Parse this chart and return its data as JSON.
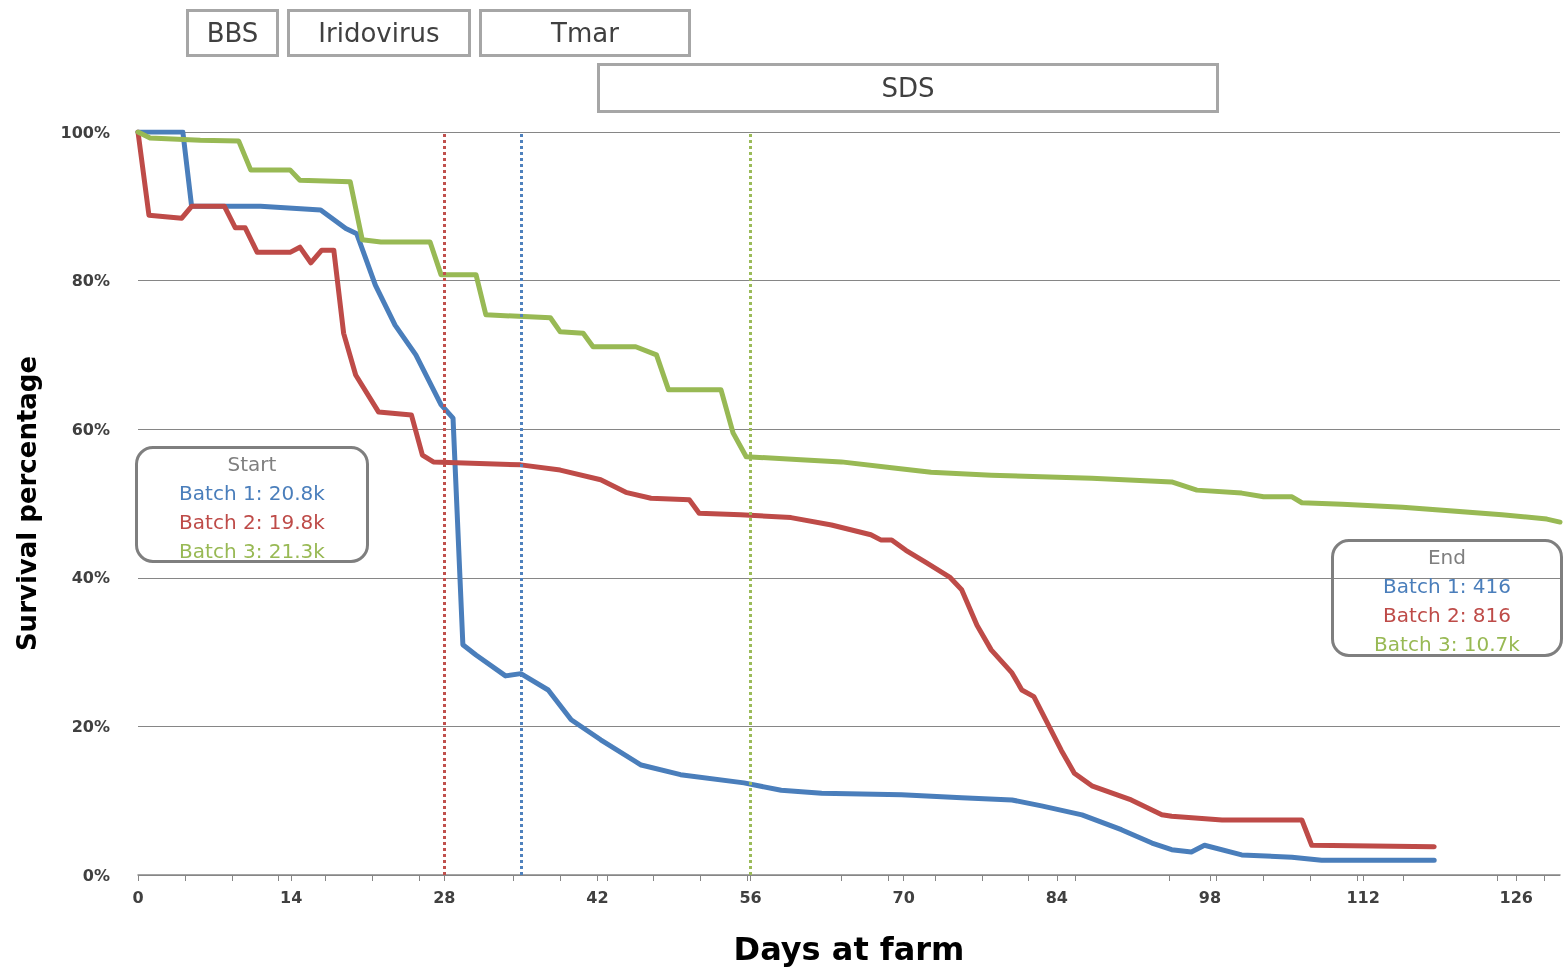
{
  "chart_data": {
    "type": "line",
    "xlabel": "Days at farm",
    "ylabel": "Survival percentage",
    "xlim": [
      0,
      130
    ],
    "xticks": [
      0,
      14,
      28,
      42,
      56,
      70,
      84,
      98,
      112,
      126
    ],
    "ylim": [
      0,
      100
    ],
    "yticks": [
      {
        "value": 0,
        "label": "0%"
      },
      {
        "value": 20,
        "label": "20%"
      },
      {
        "value": 40,
        "label": "40%"
      },
      {
        "value": 60,
        "label": "60%"
      },
      {
        "value": 80,
        "label": "80%"
      },
      {
        "value": 100,
        "label": "100%"
      }
    ],
    "grid": "y",
    "marker": "none",
    "line_style": "solid",
    "series": [
      {
        "color": "#4a7ebb",
        "x": [
          0,
          4.1,
          4.9,
          11.2,
          16.7,
          19,
          20,
          21.7,
          23.5,
          25.4,
          27.7,
          28.8,
          29.7,
          30.9,
          33.6,
          35,
          37.5,
          39.6,
          42.3,
          46,
          49.6,
          55.4,
          58.8,
          62.5,
          69.8,
          75.3,
          79.9,
          82.6,
          86.3,
          89.9,
          92.7,
          94.5,
          96.3,
          97.5,
          100.9,
          105.5,
          108.2,
          118.5
        ],
        "values": [
          100,
          100,
          90,
          90,
          89.5,
          87,
          86.3,
          79.4,
          74,
          70,
          63.3,
          61.5,
          31,
          29.6,
          26.8,
          27.1,
          24.9,
          20.9,
          18.2,
          14.8,
          13.5,
          12.4,
          11.4,
          11,
          10.8,
          10.4,
          10.1,
          9.3,
          8.1,
          6.1,
          4.3,
          3.4,
          3.1,
          4,
          2.7,
          2.4,
          2,
          2
        ]
      },
      {
        "color": "#be4b48",
        "x": [
          0,
          1,
          4,
          4.9,
          7.9,
          8.9,
          9.8,
          10.9,
          13.9,
          14.8,
          15.8,
          16.8,
          17.9,
          18.8,
          19.9,
          22,
          25,
          26,
          27,
          35,
          38.6,
          42.3,
          44.6,
          46.9,
          50.4,
          51.3,
          55.1,
          59.7,
          63.4,
          67,
          67.9,
          68.9,
          70.2,
          72.1,
          74.2,
          75.3,
          76.7,
          78,
          79.9,
          80.8,
          81.9,
          84.4,
          85.6,
          87.2,
          90.8,
          93.6,
          94.5,
          99.1,
          106.4,
          107.3,
          118.5
        ],
        "values": [
          100,
          88.8,
          88.4,
          90,
          90,
          87.1,
          87.1,
          83.8,
          83.8,
          84.5,
          82.4,
          84.1,
          84.1,
          72.9,
          67.3,
          62.3,
          61.9,
          56.5,
          55.6,
          55.2,
          54.5,
          53.2,
          51.5,
          50.7,
          50.5,
          48.7,
          48.5,
          48.1,
          47.1,
          45.8,
          45.1,
          45.1,
          43.7,
          42,
          40.1,
          38.4,
          33.6,
          30.3,
          27.2,
          24.9,
          24,
          16.8,
          13.7,
          12,
          10.1,
          8.1,
          7.9,
          7.4,
          7.4,
          4,
          3.8
        ]
      },
      {
        "color": "#98b954",
        "x": [
          0,
          1.1,
          5.7,
          9.2,
          10.3,
          13.9,
          14.8,
          19.4,
          20.5,
          22.2,
          26.7,
          27.7,
          30.9,
          31.8,
          37.7,
          38.6,
          40.7,
          41.6,
          45.5,
          47.4,
          48.5,
          53.3,
          54.4,
          55.6,
          60.6,
          64.3,
          68.9,
          72.5,
          78,
          87.2,
          94.5,
          96.8,
          100.9,
          102.9,
          105.5,
          106.4,
          110.1,
          115.6,
          124.7,
          128.8,
          130
        ],
        "values": [
          100,
          99.2,
          98.9,
          98.8,
          94.9,
          94.9,
          93.5,
          93.3,
          85.5,
          85.2,
          85.2,
          80.8,
          80.8,
          75.4,
          75,
          73.1,
          72.9,
          71.1,
          71.1,
          70,
          65.3,
          65.3,
          59.5,
          56.3,
          55.9,
          55.6,
          54.8,
          54.2,
          53.8,
          53.4,
          52.9,
          51.8,
          51.4,
          50.9,
          50.9,
          50.1,
          49.9,
          49.5,
          48.5,
          47.9,
          47.5
        ]
      }
    ],
    "ref_lines": [
      {
        "axis": "x",
        "value": 28,
        "color": "#c0504d",
        "line_style": "dotted"
      },
      {
        "axis": "x",
        "value": 35,
        "color": "#4f81bd",
        "line_style": "dotted"
      },
      {
        "axis": "x",
        "value": 56,
        "color": "#9bbb59",
        "line_style": "dotted"
      }
    ],
    "annotations": [
      "BBS",
      "Iridovirus",
      "Tmar",
      "SDS",
      "Start\nBatch 1: 20.8k\nBatch 2: 19.8k\nBatch 3: 21.3k",
      "End\nBatch 1: 416\nBatch 2: 816\nBatch 3: 10.7k"
    ]
  }
}
